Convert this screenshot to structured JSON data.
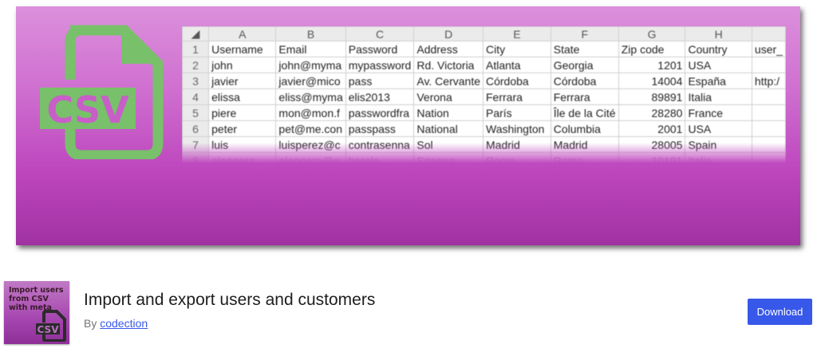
{
  "banner": {
    "icon_label": "CSV",
    "icon_color": "#78c06a",
    "spreadsheet": {
      "column_letters": [
        "A",
        "B",
        "C",
        "D",
        "E",
        "F",
        "G",
        "H",
        ""
      ],
      "rows": [
        {
          "n": "1",
          "cells": [
            "Username",
            "Email",
            "Password",
            "Address",
            "City",
            "State",
            "Zip code",
            "Country",
            "user_"
          ]
        },
        {
          "n": "2",
          "cells": [
            "john",
            "john@myma",
            "mypassword",
            "Rd. Victoria",
            "Atlanta",
            "Georgia",
            "1201",
            "USA",
            ""
          ]
        },
        {
          "n": "3",
          "cells": [
            "javier",
            "javier@mico",
            "pass",
            "Av. Cervante",
            "Córdoba",
            "Córdoba",
            "14004",
            "España",
            "http:/"
          ]
        },
        {
          "n": "4",
          "cells": [
            "elissa",
            "eliss@myma",
            "elis2013",
            "Verona",
            "Ferrara",
            "Ferrara",
            "89891",
            "Italia",
            ""
          ]
        },
        {
          "n": "5",
          "cells": [
            "piere",
            "mon@mon.f",
            "passwordfra",
            "Nation",
            "París",
            "Île de la Cité",
            "28280",
            "France",
            ""
          ]
        },
        {
          "n": "6",
          "cells": [
            "peter",
            "pet@me.con",
            "passpass",
            "National",
            "Washington",
            "Columbia",
            "2001",
            "USA",
            ""
          ]
        },
        {
          "n": "7",
          "cells": [
            "luis",
            "luisperez@c",
            "contrasenna",
            "Sol",
            "Madrid",
            "Madrid",
            "28005",
            "Spain",
            ""
          ]
        },
        {
          "n": "8",
          "cells": [
            "eleonora",
            "eleonora@g",
            "barele",
            "Spagna",
            "Roma",
            "Roma",
            "10101",
            "Italia",
            ""
          ]
        }
      ]
    }
  },
  "plugin": {
    "thumbnail_text": "Import users from CSV with meta",
    "thumbnail_icon_label": "CSV",
    "title": "Import and export users and customers",
    "by_label": "By",
    "author": "codection",
    "download_label": "Download",
    "accent_color": "#3858e9"
  }
}
